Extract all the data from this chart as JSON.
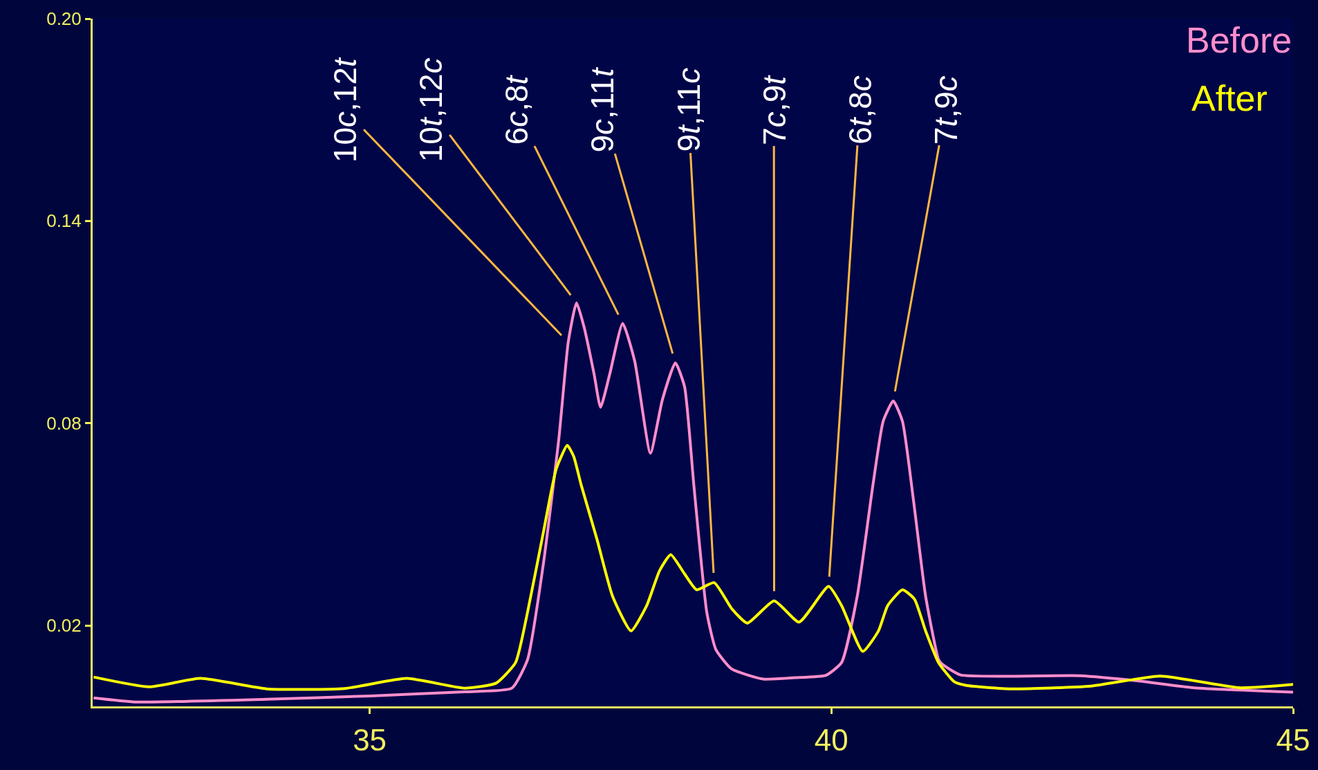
{
  "chart_data": {
    "type": "line",
    "xlim": [
      32,
      45
    ],
    "ylim": [
      -0.004,
      0.2
    ],
    "xticks": [
      35,
      40,
      45
    ],
    "yticks": [
      0.02,
      0.08,
      0.14,
      {
        "value": 0.2,
        "label": "0.20"
      }
    ],
    "grid": false,
    "legend": "top right",
    "marker": "none",
    "line_style": "solid",
    "series": [
      {
        "name": "Before",
        "color": "#ff8ecb",
        "x": [
          32.01,
          32.46,
          33.88,
          35.01,
          36.03,
          36.14,
          36.54,
          36.71,
          36.88,
          37.05,
          37.15,
          37.24,
          37.32,
          37.43,
          37.5,
          37.6,
          37.74,
          37.87,
          38.04,
          38.17,
          38.31,
          38.41,
          38.51,
          38.65,
          38.75,
          38.92,
          39.26,
          39.6,
          39.94,
          40.11,
          40.28,
          40.45,
          40.56,
          40.67,
          40.77,
          40.89,
          41.02,
          41.16,
          41.2,
          41.4,
          42.69,
          43.31,
          43.93,
          45.0
        ],
        "values": [
          -0.0015,
          -0.0027,
          -0.0019,
          -0.0009,
          0.0003,
          0.0004,
          0.0014,
          0.0099,
          0.0381,
          0.0758,
          0.104,
          0.1157,
          0.1087,
          0.0946,
          0.0847,
          0.0946,
          0.1096,
          0.0984,
          0.0711,
          0.087,
          0.0979,
          0.0908,
          0.0617,
          0.024,
          0.0128,
          0.0071,
          0.0041,
          0.0045,
          0.0052,
          0.009,
          0.0287,
          0.0617,
          0.0805,
          0.0866,
          0.0805,
          0.0569,
          0.0287,
          0.0099,
          0.0085,
          0.0053,
          0.0051,
          0.0036,
          0.0015,
          0.0002
        ]
      },
      {
        "name": "After",
        "color": "#ffff00",
        "x": [
          32.01,
          32.61,
          33.17,
          33.88,
          34.73,
          35.4,
          36.03,
          36.37,
          36.58,
          36.71,
          36.88,
          37.02,
          37.14,
          37.21,
          37.29,
          37.46,
          37.63,
          37.83,
          38.0,
          38.14,
          38.26,
          38.41,
          38.54,
          38.73,
          38.92,
          39.09,
          39.38,
          39.65,
          39.97,
          40.11,
          40.34,
          40.51,
          40.61,
          40.77,
          40.9,
          41.02,
          41.16,
          41.33,
          41.46,
          41.95,
          42.81,
          43.56,
          44.43,
          45.0
        ],
        "values": [
          0.0047,
          0.0018,
          0.0043,
          0.0012,
          0.0013,
          0.0043,
          0.0014,
          0.0029,
          0.009,
          0.024,
          0.0475,
          0.0664,
          0.0734,
          0.0701,
          0.0617,
          0.0457,
          0.0287,
          0.0184,
          0.0259,
          0.0363,
          0.041,
          0.0353,
          0.0306,
          0.0327,
          0.025,
          0.0207,
          0.0273,
          0.021,
          0.0316,
          0.0259,
          0.0123,
          0.0184,
          0.0259,
          0.0306,
          0.0278,
          0.0184,
          0.009,
          0.0033,
          0.0022,
          0.0012,
          0.002,
          0.005,
          0.0015,
          0.0025
        ]
      }
    ],
    "annotations": [
      {
        "text": "10c,12t",
        "x": 37.15,
        "y": 0.104
      },
      {
        "text": "10t,12c",
        "x": 37.24,
        "y": 0.1157
      },
      {
        "text": "6c,8t",
        "x": 37.74,
        "y": 0.1096
      },
      {
        "text": "9c,11t",
        "x": 38.31,
        "y": 0.0979
      },
      {
        "text": "9t,11c",
        "x": 38.73,
        "y": 0.0327
      },
      {
        "text": "7c,9t",
        "x": 39.38,
        "y": 0.0273
      },
      {
        "text": "6t,8c",
        "x": 39.97,
        "y": 0.0316
      },
      {
        "text": "7t,9c",
        "x": 40.67,
        "y": 0.0866
      }
    ]
  }
}
